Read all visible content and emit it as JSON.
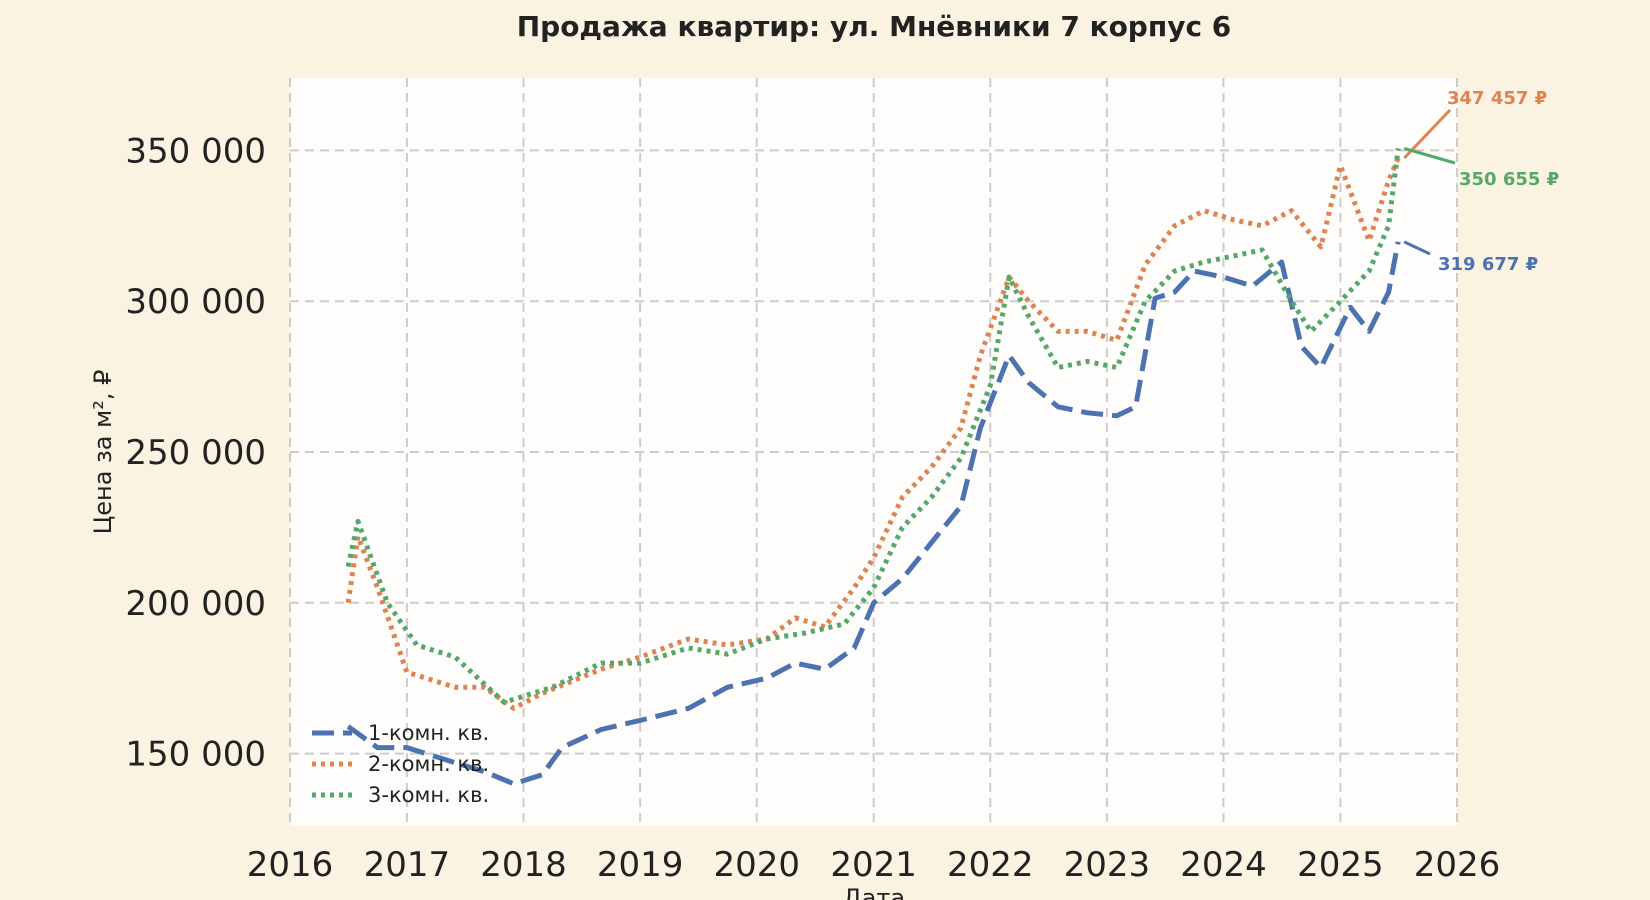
{
  "chart_data": {
    "type": "line",
    "title": "Продажа квартир: ул. Мнёвники 7 корпус 6",
    "xlabel": "Дата",
    "ylabel": "Цена за м², ₽",
    "xlim": [
      "2016-01-01",
      "2026-01-01"
    ],
    "ylim": [
      126000,
      374000
    ],
    "x_ticks": [
      "2016",
      "2017",
      "2018",
      "2019",
      "2020",
      "2021",
      "2022",
      "2023",
      "2024",
      "2025",
      "2026"
    ],
    "y_ticks": [
      {
        "value": 150000,
        "label": "150 000"
      },
      {
        "value": 200000,
        "label": "200 000"
      },
      {
        "value": 250000,
        "label": "250 000"
      },
      {
        "value": 300000,
        "label": "300 000"
      },
      {
        "value": 350000,
        "label": "350 000"
      }
    ],
    "grid": true,
    "legend_position": "lower-left",
    "series": [
      {
        "name": "1-комн. кв.",
        "color": "#4c72b0",
        "style": "dashed",
        "x": [
          "2016-07-01",
          "2016-10-01",
          "2017-01-01",
          "2017-06-01",
          "2017-09-01",
          "2017-12-01",
          "2018-03-01",
          "2018-05-01",
          "2018-09-01",
          "2019-01-01",
          "2019-06-01",
          "2019-10-01",
          "2020-02-01",
          "2020-05-01",
          "2020-08-01",
          "2020-11-01",
          "2021-01-01",
          "2021-04-01",
          "2021-07-01",
          "2021-10-01",
          "2021-12-01",
          "2022-03-01",
          "2022-05-01",
          "2022-08-01",
          "2022-11-01",
          "2023-02-01",
          "2023-04-01",
          "2023-06-01",
          "2023-08-01",
          "2023-10-01",
          "2024-01-01",
          "2024-04-01",
          "2024-07-01",
          "2024-09-01",
          "2024-11-01",
          "2025-02-01",
          "2025-04-01",
          "2025-06-01",
          "2025-07-01"
        ],
        "values": [
          159000,
          152000,
          152000,
          147000,
          144000,
          140000,
          143000,
          152000,
          158000,
          161000,
          165000,
          172000,
          175000,
          180000,
          178000,
          185000,
          200000,
          208000,
          220000,
          232000,
          258000,
          282000,
          273000,
          265000,
          263000,
          262000,
          265000,
          301000,
          303000,
          310000,
          308000,
          305000,
          313000,
          285000,
          278000,
          298000,
          290000,
          303000,
          319677
        ]
      },
      {
        "name": "2-комн. кв.",
        "color": "#dd8452",
        "style": "dotted",
        "x": [
          "2016-07-01",
          "2016-08-01",
          "2016-10-01",
          "2017-01-01",
          "2017-06-01",
          "2017-09-01",
          "2017-12-01",
          "2018-03-01",
          "2018-09-01",
          "2019-01-01",
          "2019-06-01",
          "2019-10-01",
          "2020-02-01",
          "2020-05-01",
          "2020-08-01",
          "2020-11-01",
          "2021-01-01",
          "2021-04-01",
          "2021-07-01",
          "2021-10-01",
          "2021-12-01",
          "2022-03-01",
          "2022-05-01",
          "2022-08-01",
          "2022-11-01",
          "2023-02-01",
          "2023-05-01",
          "2023-08-01",
          "2023-11-01",
          "2024-02-01",
          "2024-05-01",
          "2024-08-01",
          "2024-11-01",
          "2025-01-01",
          "2025-04-01",
          "2025-06-01",
          "2025-07-01"
        ],
        "values": [
          200000,
          222000,
          205000,
          177000,
          172000,
          172000,
          165000,
          170000,
          178000,
          182000,
          188000,
          186000,
          188000,
          195000,
          192000,
          205000,
          215000,
          235000,
          245000,
          258000,
          282000,
          308000,
          300000,
          290000,
          290000,
          287000,
          312000,
          325000,
          330000,
          327000,
          325000,
          330000,
          318000,
          345000,
          320000,
          340000,
          347457
        ]
      },
      {
        "name": "3-комн. кв.",
        "color": "#55a868",
        "style": "dotted",
        "x": [
          "2016-07-01",
          "2016-08-01",
          "2016-11-01",
          "2017-02-01",
          "2017-06-01",
          "2017-11-01",
          "2018-04-01",
          "2018-09-01",
          "2019-01-01",
          "2019-06-01",
          "2019-10-01",
          "2020-02-01",
          "2020-06-01",
          "2020-10-01",
          "2021-01-01",
          "2021-04-01",
          "2021-07-01",
          "2021-10-01",
          "2022-01-01",
          "2022-03-01",
          "2022-05-01",
          "2022-08-01",
          "2022-11-01",
          "2023-02-01",
          "2023-05-01",
          "2023-08-01",
          "2023-11-01",
          "2024-02-01",
          "2024-05-01",
          "2024-08-01",
          "2024-10-01",
          "2025-01-01",
          "2025-04-01",
          "2025-06-01",
          "2025-07-01"
        ],
        "values": [
          212000,
          227000,
          200000,
          186000,
          182000,
          167000,
          172000,
          180000,
          180000,
          185000,
          183000,
          188000,
          190000,
          193000,
          205000,
          225000,
          235000,
          248000,
          272000,
          308000,
          295000,
          278000,
          280000,
          278000,
          300000,
          310000,
          313000,
          315000,
          317000,
          300000,
          290000,
          300000,
          310000,
          325000,
          350655
        ]
      }
    ],
    "annotations": [
      {
        "label": "347 457 ₽",
        "series": "2-комн. кв."
      },
      {
        "label": "350 655 ₽",
        "series": "3-комн. кв."
      },
      {
        "label": "319 677 ₽",
        "series": "1-комн. кв."
      }
    ]
  }
}
